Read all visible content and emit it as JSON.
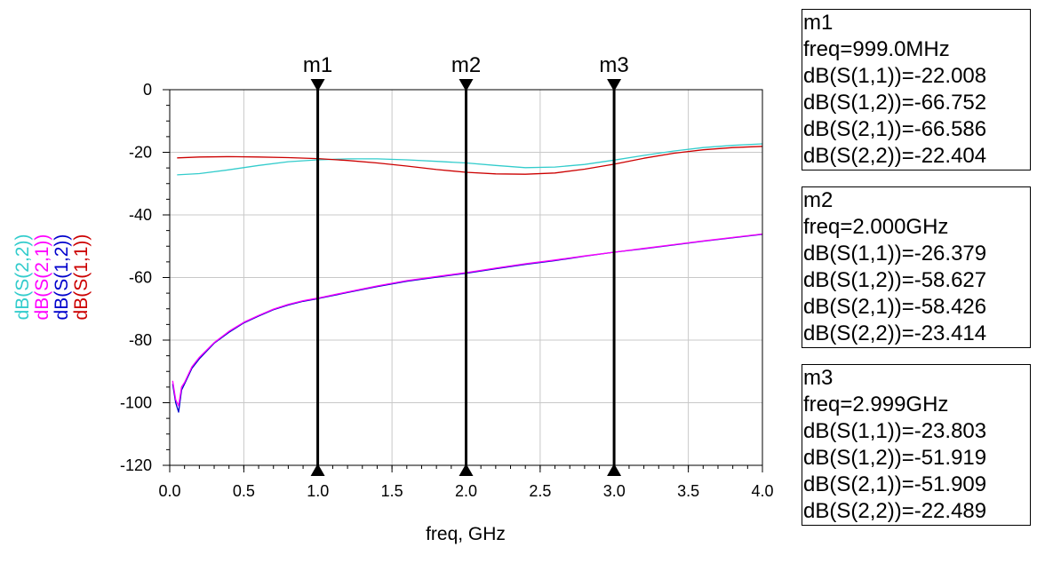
{
  "chart_data": {
    "type": "line",
    "xlabel": "freq, GHz",
    "xlim": [
      0,
      4
    ],
    "ylim": [
      -120,
      0
    ],
    "x_ticks": [
      "0.0",
      "0.5",
      "1.0",
      "1.5",
      "2.0",
      "2.5",
      "3.0",
      "3.5",
      "4.0"
    ],
    "y_ticks": [
      "0",
      "-20",
      "-40",
      "-60",
      "-80",
      "-100",
      "-120"
    ],
    "grid": true,
    "legend": "left-vertical",
    "series": [
      {
        "name": "dB(S(1,1))",
        "color": "#cc0000",
        "x": [
          0.05,
          0.2,
          0.4,
          0.6,
          0.8,
          0.999,
          1.2,
          1.4,
          1.6,
          1.8,
          2.0,
          2.2,
          2.4,
          2.6,
          2.8,
          2.999,
          3.2,
          3.4,
          3.6,
          3.8,
          4.0
        ],
        "y": [
          -21.8,
          -21.5,
          -21.4,
          -21.5,
          -21.7,
          -22.008,
          -22.6,
          -23.4,
          -24.4,
          -25.5,
          -26.379,
          -26.9,
          -27.0,
          -26.6,
          -25.4,
          -23.803,
          -21.9,
          -20.3,
          -19.2,
          -18.5,
          -18.1
        ]
      },
      {
        "name": "dB(S(1,2))",
        "color": "#0000cc",
        "x": [
          0.02,
          0.04,
          0.06,
          0.08,
          0.1,
          0.15,
          0.2,
          0.3,
          0.4,
          0.5,
          0.6,
          0.7,
          0.8,
          0.9,
          0.999,
          1.2,
          1.4,
          1.6,
          1.8,
          2.0,
          2.2,
          2.4,
          2.6,
          2.8,
          2.999,
          3.2,
          3.4,
          3.6,
          3.8,
          4.0
        ],
        "y": [
          -94,
          -100,
          -103,
          -96,
          -94,
          -89,
          -86,
          -81,
          -77.5,
          -74.5,
          -72.3,
          -70.3,
          -68.8,
          -67.6,
          -66.752,
          -64.8,
          -62.9,
          -61.2,
          -59.9,
          -58.627,
          -57.2,
          -55.8,
          -54.6,
          -53.2,
          -51.919,
          -50.8,
          -49.6,
          -48.4,
          -47.3,
          -46.2
        ]
      },
      {
        "name": "dB(S(2,1))",
        "color": "#ff00ff",
        "x": [
          0.02,
          0.04,
          0.06,
          0.08,
          0.1,
          0.15,
          0.2,
          0.3,
          0.4,
          0.5,
          0.6,
          0.7,
          0.8,
          0.9,
          0.999,
          1.2,
          1.4,
          1.6,
          1.8,
          2.0,
          2.2,
          2.4,
          2.6,
          2.8,
          2.999,
          3.2,
          3.4,
          3.6,
          3.8,
          4.0
        ],
        "y": [
          -93,
          -99,
          -101,
          -95,
          -93.5,
          -88.5,
          -85.5,
          -80.8,
          -77.2,
          -74.3,
          -72.1,
          -70.1,
          -68.6,
          -67.4,
          -66.586,
          -64.6,
          -62.7,
          -61.0,
          -59.7,
          -58.426,
          -57.0,
          -55.6,
          -54.4,
          -53.1,
          -51.909,
          -50.7,
          -49.5,
          -48.3,
          -47.2,
          -46.1
        ]
      },
      {
        "name": "dB(S(2,2))",
        "color": "#33cccc",
        "x": [
          0.05,
          0.2,
          0.4,
          0.6,
          0.8,
          0.999,
          1.2,
          1.4,
          1.6,
          1.8,
          2.0,
          2.2,
          2.4,
          2.6,
          2.8,
          2.999,
          3.2,
          3.4,
          3.6,
          3.8,
          4.0
        ],
        "y": [
          -27.2,
          -26.8,
          -25.6,
          -24.2,
          -23.0,
          -22.404,
          -22.1,
          -22.1,
          -22.4,
          -22.9,
          -23.414,
          -24.2,
          -24.9,
          -24.7,
          -23.9,
          -22.489,
          -21.0,
          -19.6,
          -18.5,
          -17.8,
          -17.3
        ]
      }
    ],
    "markers": [
      {
        "label": "m1",
        "x": 0.999
      },
      {
        "label": "m2",
        "x": 2.0
      },
      {
        "label": "m3",
        "x": 2.999
      }
    ]
  },
  "marker_boxes": [
    {
      "title": "m1",
      "freq": "freq=999.0MHz",
      "lines": [
        "dB(S(1,1))=-22.008",
        "dB(S(1,2))=-66.752",
        "dB(S(2,1))=-66.586",
        "dB(S(2,2))=-22.404"
      ]
    },
    {
      "title": "m2",
      "freq": "freq=2.000GHz",
      "lines": [
        "dB(S(1,1))=-26.379",
        "dB(S(1,2))=-58.627",
        "dB(S(2,1))=-58.426",
        "dB(S(2,2))=-23.414"
      ]
    },
    {
      "title": "m3",
      "freq": "freq=2.999GHz",
      "lines": [
        "dB(S(1,1))=-23.803",
        "dB(S(1,2))=-51.919",
        "dB(S(2,1))=-51.909",
        "dB(S(2,2))=-22.489"
      ]
    }
  ]
}
